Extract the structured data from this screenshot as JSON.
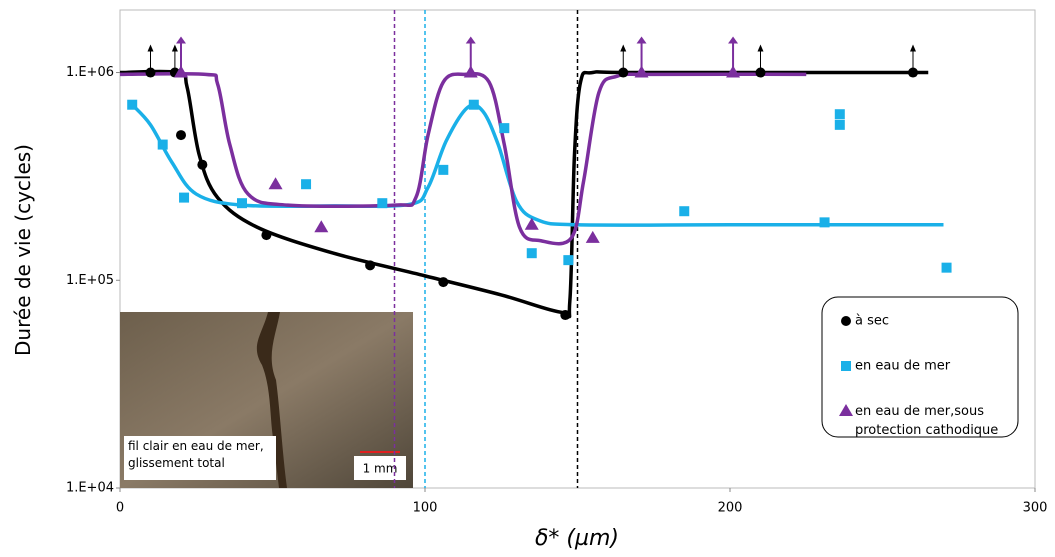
{
  "chart_data": {
    "type": "scatter",
    "xlabel": "δ* (µm)",
    "ylabel": "Durée de vie (cycles)",
    "xlim": [
      0,
      300
    ],
    "xticks": [
      0,
      100,
      200,
      300
    ],
    "ylim": [
      10000,
      2000000
    ],
    "log_y": true,
    "yticks": [
      {
        "value": 10000,
        "label": "1.E+04"
      },
      {
        "value": 100000,
        "label": "1.E+05"
      },
      {
        "value": 1000000,
        "label": "1.E+06"
      }
    ],
    "legend": "right",
    "series": [
      {
        "name": "à sec",
        "color": "#000000",
        "marker": "circle",
        "x": [
          10,
          18,
          20,
          27,
          48,
          82,
          106,
          146,
          165,
          210,
          260
        ],
        "values": [
          1000000,
          1000000,
          500000,
          360000,
          165000,
          118000,
          98000,
          68000,
          1000000,
          1000000,
          1000000
        ],
        "runout": [
          true,
          true,
          false,
          false,
          false,
          false,
          false,
          false,
          true,
          true,
          true
        ]
      },
      {
        "name": "en eau de mer",
        "color": "#1ab0e8",
        "marker": "square",
        "x": [
          4,
          14,
          21,
          40,
          61,
          86,
          106,
          116,
          126,
          135,
          147,
          185,
          231,
          236,
          236,
          271
        ],
        "values": [
          700000,
          450000,
          250000,
          235000,
          290000,
          235000,
          340000,
          700000,
          540000,
          135000,
          125000,
          215000,
          190000,
          630000,
          560000,
          115000
        ],
        "runout": [
          false,
          false,
          false,
          false,
          false,
          false,
          false,
          false,
          false,
          false,
          false,
          false,
          false,
          false,
          false,
          false
        ]
      },
      {
        "name": "en eau de mer,sous protection cathodique",
        "color": "#7b2f9e",
        "marker": "triangle",
        "x": [
          20,
          51,
          66,
          115,
          135,
          155,
          171,
          201
        ],
        "values": [
          1000000,
          290000,
          180000,
          1000000,
          185000,
          160000,
          1000000,
          1000000
        ],
        "runout": [
          true,
          false,
          false,
          true,
          false,
          false,
          true,
          true
        ]
      }
    ],
    "curves": [
      {
        "color": "#000000",
        "x": [
          0,
          19,
          22,
          26,
          32,
          45,
          70,
          100,
          125,
          145,
          147.5,
          149,
          151,
          155,
          170,
          265
        ],
        "values": [
          1000000,
          1000000,
          850000,
          400000,
          250000,
          180000,
          135000,
          105000,
          85000,
          70000,
          80000,
          400000,
          900000,
          1000000,
          1000000,
          1000000
        ]
      },
      {
        "color": "#1ab0e8",
        "x": [
          4,
          10,
          17,
          25,
          40,
          70,
          95,
          101,
          107,
          114,
          119,
          124,
          130,
          137,
          150,
          200,
          270
        ],
        "values": [
          700000,
          560000,
          370000,
          260000,
          230000,
          228000,
          232000,
          280000,
          470000,
          680000,
          650000,
          450000,
          240000,
          195000,
          185000,
          185000,
          185000
        ]
      },
      {
        "color": "#7b2f9e",
        "x": [
          0,
          28,
          32,
          36,
          42,
          55,
          90,
          97,
          101,
          106,
          113,
          121,
          126,
          131,
          138,
          148,
          152,
          157,
          163,
          175,
          225
        ],
        "values": [
          980000,
          980000,
          880000,
          450000,
          260000,
          230000,
          230000,
          250000,
          500000,
          900000,
          980000,
          900000,
          450000,
          180000,
          155000,
          160000,
          300000,
          800000,
          960000,
          980000,
          980000
        ]
      }
    ],
    "vlines": [
      {
        "value": 90,
        "color": "#7b2f9e"
      },
      {
        "value": 100,
        "color": "#1ab0e8"
      },
      {
        "value": 150,
        "color": "#000000"
      }
    ]
  },
  "inset": {
    "caption": "fil clair en eau de mer, glissement total",
    "scale": "1 mm"
  }
}
